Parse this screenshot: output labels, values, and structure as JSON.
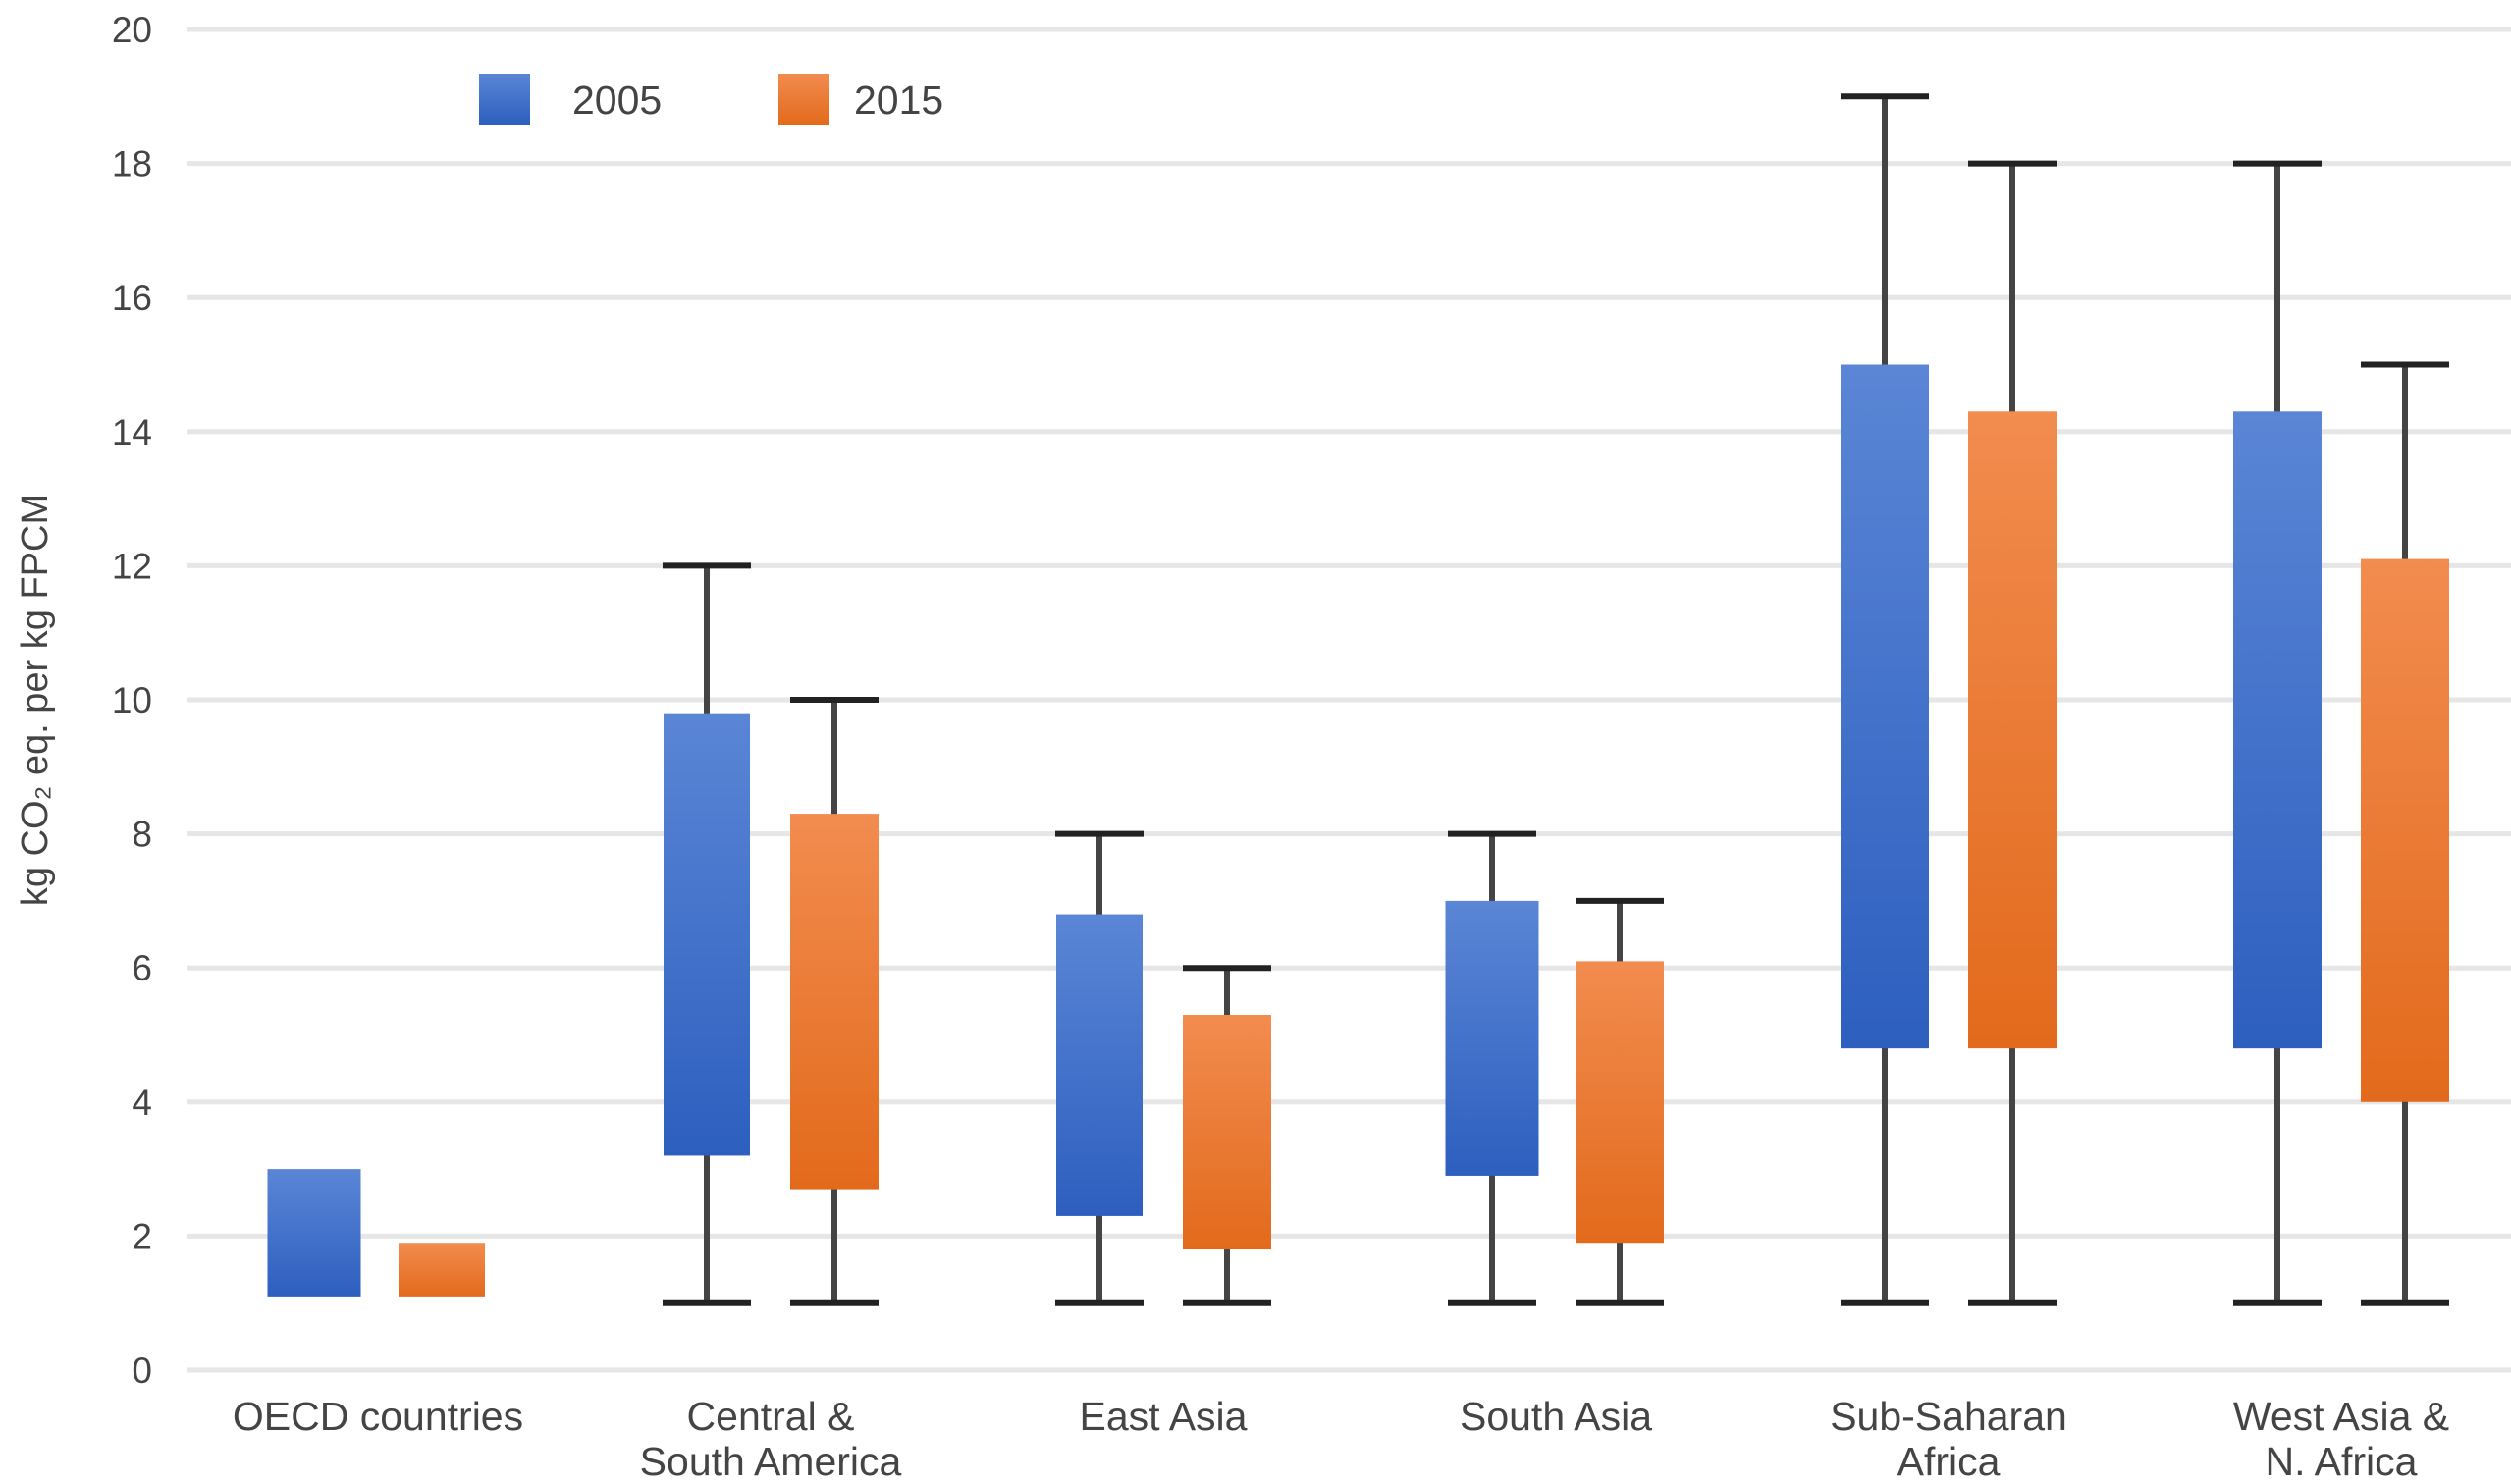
{
  "chart_data": {
    "type": "bar",
    "subtype": "floating-range-with-whiskers",
    "ylabel": "kg CO₂ eq. per kg FPCM",
    "ylim": [
      0,
      20
    ],
    "yticks": [
      0,
      2,
      4,
      6,
      8,
      10,
      12,
      14,
      16,
      18,
      20
    ],
    "grid": true,
    "legend_position": "top-left",
    "categories": [
      [
        "OECD countries"
      ],
      [
        "Central &",
        "South America"
      ],
      [
        "East Asia"
      ],
      [
        "South Asia"
      ],
      [
        "Sub-Saharan",
        "Africa"
      ],
      [
        "West Asia &",
        "N. Africa"
      ]
    ],
    "series": [
      {
        "name": "2005",
        "color_top": "#5b86d6",
        "color_bottom": "#2d5fbf",
        "ranges": [
          {
            "low": 1.1,
            "high": 3.0,
            "whisker_min": null,
            "whisker_max": null
          },
          {
            "low": 3.2,
            "high": 9.8,
            "whisker_min": 1,
            "whisker_max": 12
          },
          {
            "low": 2.3,
            "high": 6.8,
            "whisker_min": 1,
            "whisker_max": 8
          },
          {
            "low": 2.9,
            "high": 7.0,
            "whisker_min": 1,
            "whisker_max": 8
          },
          {
            "low": 4.8,
            "high": 15.0,
            "whisker_min": 1,
            "whisker_max": 19
          },
          {
            "low": 4.8,
            "high": 14.3,
            "whisker_min": 1,
            "whisker_max": 18
          }
        ]
      },
      {
        "name": "2015",
        "color_top": "#f28c4f",
        "color_bottom": "#e26a1c",
        "ranges": [
          {
            "low": 1.1,
            "high": 1.9,
            "whisker_min": null,
            "whisker_max": null
          },
          {
            "low": 2.7,
            "high": 8.3,
            "whisker_min": 1,
            "whisker_max": 10
          },
          {
            "low": 1.8,
            "high": 5.3,
            "whisker_min": 1,
            "whisker_max": 6
          },
          {
            "low": 1.9,
            "high": 6.1,
            "whisker_min": 1,
            "whisker_max": 7
          },
          {
            "low": 4.8,
            "high": 14.3,
            "whisker_min": 1,
            "whisker_max": 18
          },
          {
            "low": 4.0,
            "high": 12.1,
            "whisker_min": 1,
            "whisker_max": 15
          }
        ]
      }
    ]
  }
}
